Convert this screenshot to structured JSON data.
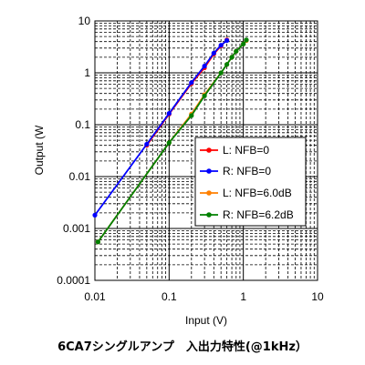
{
  "chart_data": {
    "type": "line",
    "title": "6CA7シングルアンプ　入出力特性(@1kHz）",
    "xlabel": "Input (V)",
    "ylabel": "Output (W",
    "x_scale": "log",
    "y_scale": "log",
    "xlim": [
      0.01,
      10
    ],
    "ylim": [
      0.0001,
      10
    ],
    "x_ticks": [
      "0.01",
      "0.1",
      "1",
      "10"
    ],
    "y_ticks": [
      "0.0001",
      "0.001",
      "0.01",
      "0.1",
      "1",
      "10"
    ],
    "grid": "major solid, minor dashed",
    "legend_position": "right",
    "series": [
      {
        "name": "L: NFB=0",
        "color": "#ff0000",
        "x": [
          0.05,
          0.1,
          0.2,
          0.3,
          0.4,
          0.5,
          0.6
        ],
        "y": [
          0.04,
          0.16,
          0.62,
          1.25,
          2.3,
          3.3,
          4.3
        ]
      },
      {
        "name": "R: NFB=0",
        "color": "#0000ff",
        "x": [
          0.01,
          0.05,
          0.1,
          0.2,
          0.3,
          0.4,
          0.5,
          0.6
        ],
        "y": [
          0.0018,
          0.042,
          0.165,
          0.65,
          1.35,
          2.4,
          3.4,
          4.2
        ]
      },
      {
        "name": "L: NFB=6.0dB",
        "color": "#ff8000",
        "x": [
          0.011,
          0.1,
          0.2,
          0.3,
          0.5,
          0.6,
          0.7,
          0.8,
          1.0,
          1.1
        ],
        "y": [
          0.00055,
          0.045,
          0.16,
          0.38,
          1.0,
          1.45,
          2.0,
          2.6,
          3.6,
          4.2
        ]
      },
      {
        "name": "R: NFB=6.2dB",
        "color": "#008000",
        "x": [
          0.011,
          0.1,
          0.2,
          0.3,
          0.5,
          0.6,
          0.7,
          0.8,
          1.0,
          1.1
        ],
        "y": [
          0.00055,
          0.045,
          0.15,
          0.36,
          1.0,
          1.45,
          2.0,
          2.6,
          3.6,
          4.3
        ]
      }
    ]
  }
}
